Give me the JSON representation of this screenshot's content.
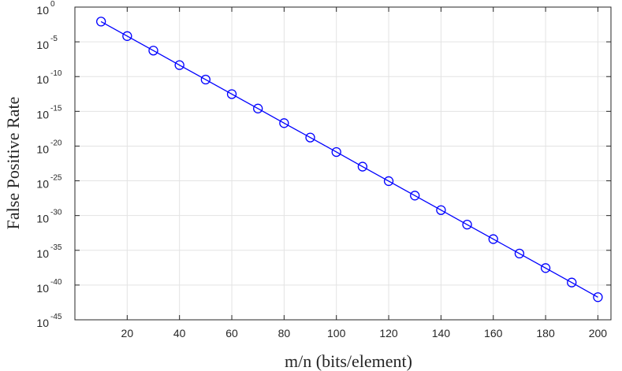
{
  "chart_data": {
    "type": "line",
    "xlabel": "m/n (bits/element)",
    "ylabel": "False Positive Rate",
    "x": [
      10,
      20,
      30,
      40,
      50,
      60,
      70,
      80,
      90,
      100,
      110,
      120,
      130,
      140,
      150,
      160,
      170,
      180,
      190,
      200
    ],
    "series": [
      {
        "values": [
          0.0082,
          6.7e-05,
          5.5e-07,
          4.5e-09,
          3.7e-11,
          3e-13,
          2.5e-15,
          2e-17,
          1.7e-19,
          1.4e-21,
          1.1e-23,
          9.1e-26,
          7.5e-28,
          6.1e-30,
          5e-32,
          4.1e-34,
          3.4e-36,
          2.8e-38,
          2.3e-40,
          1.8e-42
        ],
        "color": "#0000ff",
        "marker": "circle"
      }
    ],
    "xlim": [
      0,
      205
    ],
    "x_ticks": [
      20,
      40,
      60,
      80,
      100,
      120,
      140,
      160,
      180,
      200
    ],
    "y_scale": "log",
    "ylim_exponent": [
      -45,
      0
    ],
    "y_ticks": [
      {
        "base": "10",
        "exp": "0"
      },
      {
        "base": "10",
        "exp": "-5"
      },
      {
        "base": "10",
        "exp": "-10"
      },
      {
        "base": "10",
        "exp": "-15"
      },
      {
        "base": "10",
        "exp": "-20"
      },
      {
        "base": "10",
        "exp": "-25"
      },
      {
        "base": "10",
        "exp": "-30"
      },
      {
        "base": "10",
        "exp": "-35"
      },
      {
        "base": "10",
        "exp": "-40"
      },
      {
        "base": "10",
        "exp": "-45"
      }
    ],
    "grid": true,
    "legend": "none"
  }
}
